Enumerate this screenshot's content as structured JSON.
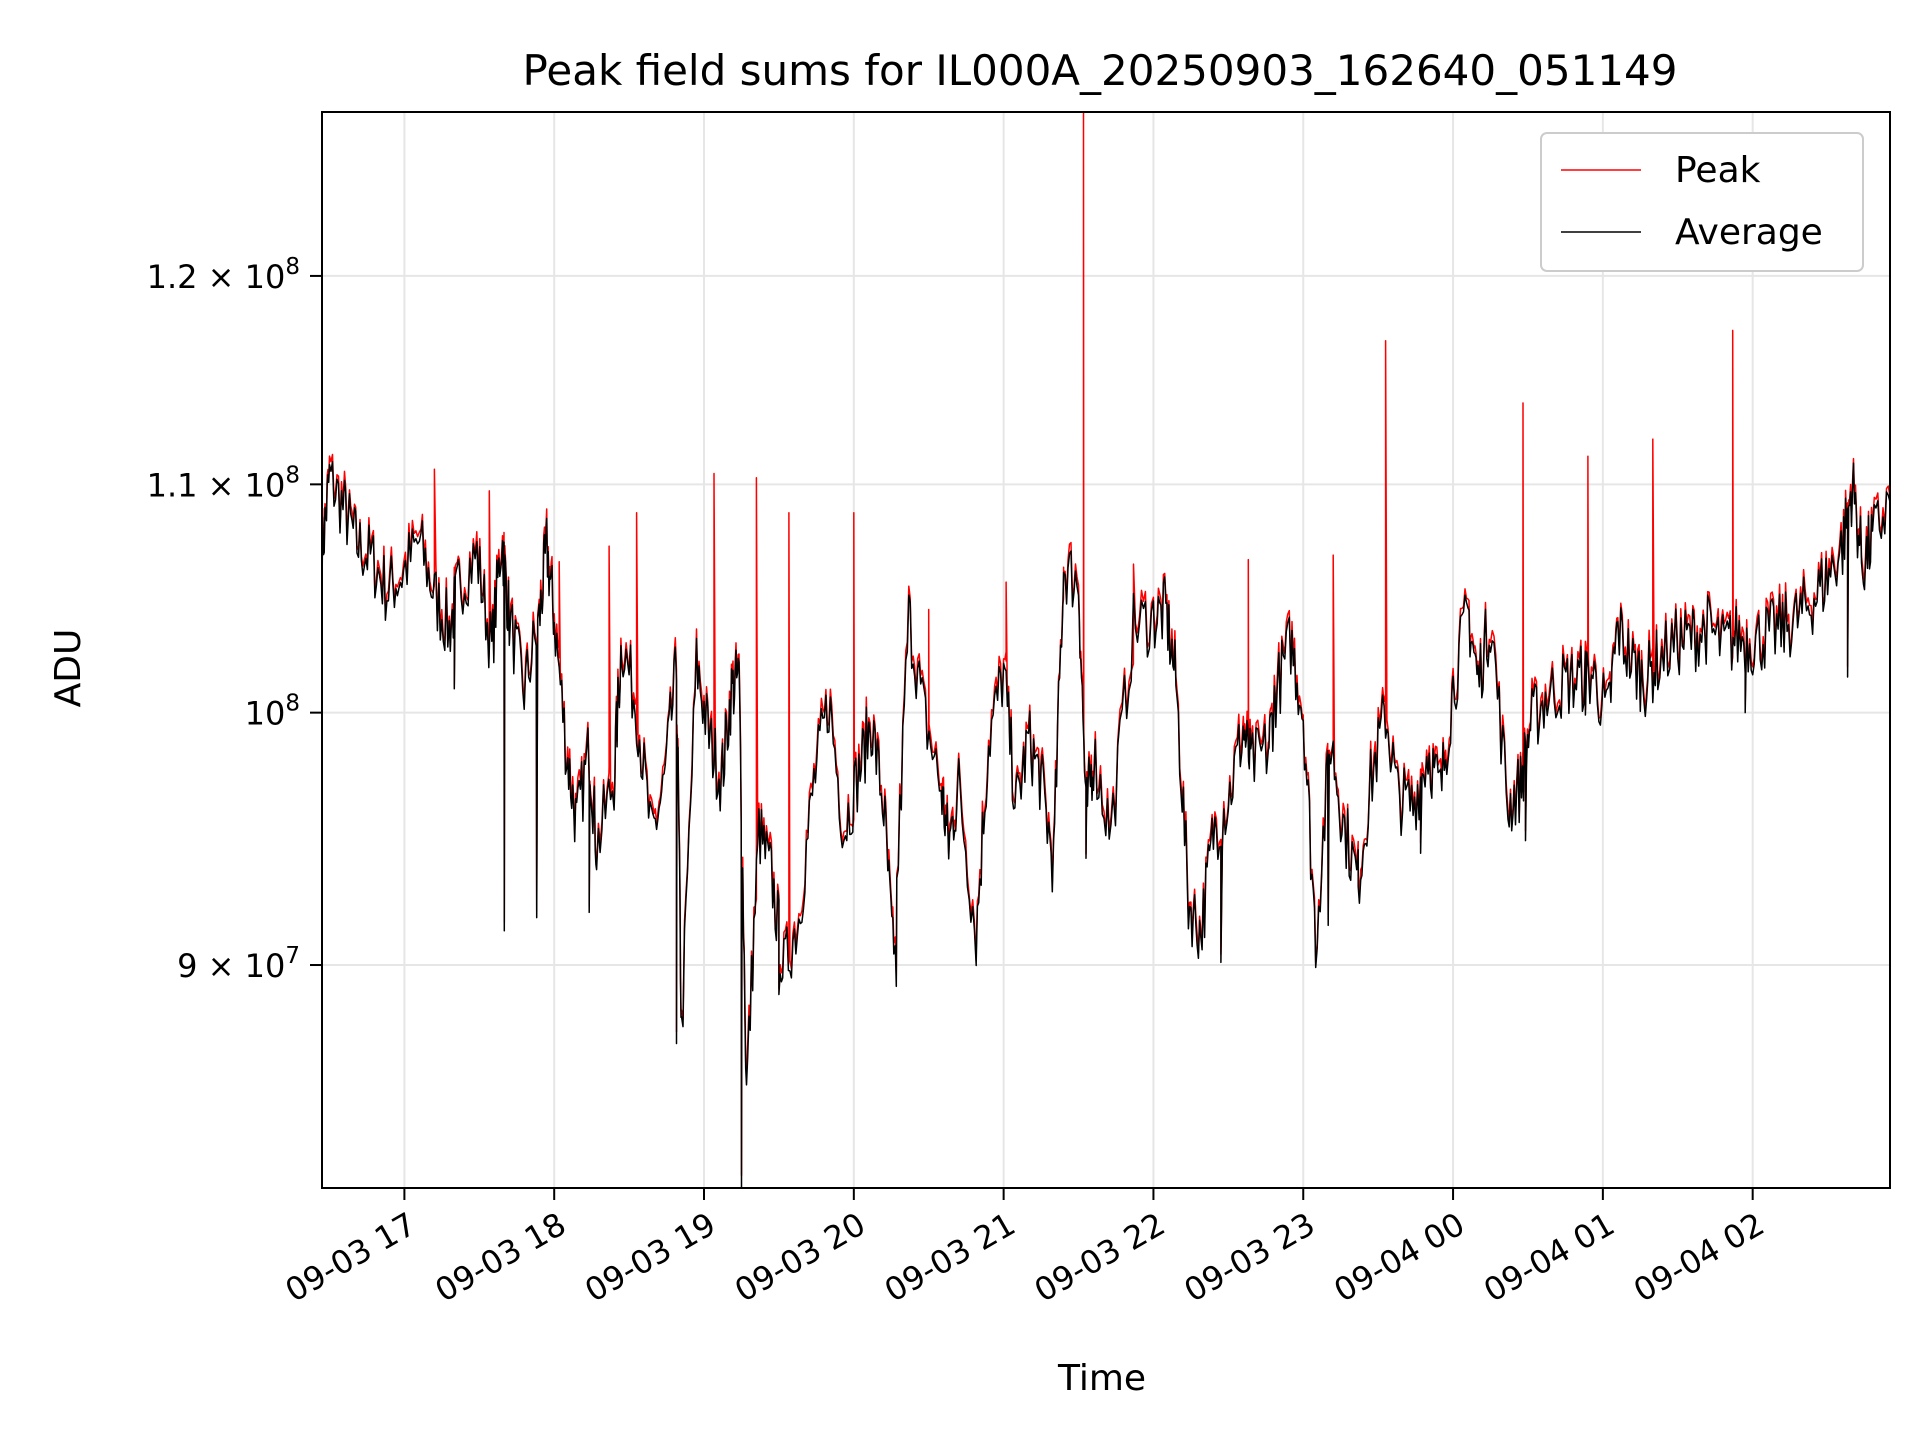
{
  "colors": {
    "peak": "#ff0000",
    "average": "#000000",
    "grid": "#e6e6e6"
  },
  "chart_data": {
    "type": "line",
    "title": "Peak field sums for IL000A_20250903_162640_051149",
    "xlabel": "Time",
    "ylabel": "ADU",
    "x_scale": "time",
    "y_scale": "log",
    "xlim": [
      "2025-09-03 16:27",
      "2025-09-04 02:55"
    ],
    "ylim": [
      82000000,
      128500000
    ],
    "grid": true,
    "legend": "top-right",
    "x_ticks": [
      "09-03 17",
      "09-03 18",
      "09-03 19",
      "09-03 20",
      "09-03 21",
      "09-03 22",
      "09-03 23",
      "09-04 00",
      "09-04 01",
      "09-04 02"
    ],
    "x_tick_times": [
      "2025-09-03 17:00",
      "2025-09-03 18:00",
      "2025-09-03 19:00",
      "2025-09-03 20:00",
      "2025-09-03 21:00",
      "2025-09-03 22:00",
      "2025-09-03 23:00",
      "2025-09-04 00:00",
      "2025-09-04 01:00",
      "2025-09-04 02:00"
    ],
    "y_ticks": [
      {
        "value": 90000000,
        "mant": "9",
        "exp": "7"
      },
      {
        "value": 100000000,
        "mant": "",
        "exp": "8"
      },
      {
        "value": 110000000,
        "mant": "1.1",
        "exp": "8"
      },
      {
        "value": 120000000,
        "mant": "1.2",
        "exp": "8"
      }
    ],
    "series": [
      {
        "name": "Average",
        "color": "#000000",
        "x": [
          "2025-09-03 16:27",
          "2025-09-03 16:30",
          "2025-09-03 16:36",
          "2025-09-03 16:41",
          "2025-09-03 16:47",
          "2025-09-03 16:53",
          "2025-09-03 16:59",
          "2025-09-03 17:06",
          "2025-09-03 17:12",
          "2025-09-03 17:18",
          "2025-09-03 17:22",
          "2025-09-03 17:29",
          "2025-09-03 17:35",
          "2025-09-03 17:39",
          "2025-09-03 17:42",
          "2025-09-03 17:48",
          "2025-09-03 17:54",
          "2025-09-03 17:57",
          "2025-09-03 18:00",
          "2025-09-03 18:05",
          "2025-09-03 18:09",
          "2025-09-03 18:14",
          "2025-09-03 18:17",
          "2025-09-03 18:24",
          "2025-09-03 18:27",
          "2025-09-03 18:33",
          "2025-09-03 18:39",
          "2025-09-03 18:44",
          "2025-09-03 18:49",
          "2025-09-03 18:51",
          "2025-09-03 18:57",
          "2025-09-03 19:02",
          "2025-09-03 19:07",
          "2025-09-03 19:11",
          "2025-09-03 19:14",
          "2025-09-03 19:17",
          "2025-09-03 19:22",
          "2025-09-03 19:27",
          "2025-09-03 19:32",
          "2025-09-03 19:38",
          "2025-09-03 19:44",
          "2025-09-03 19:50",
          "2025-09-03 19:56",
          "2025-09-03 20:02",
          "2025-09-03 20:07",
          "2025-09-03 20:12",
          "2025-09-03 20:16",
          "2025-09-03 20:22",
          "2025-09-03 20:28",
          "2025-09-03 20:35",
          "2025-09-03 20:38",
          "2025-09-03 20:42",
          "2025-09-03 20:49",
          "2025-09-03 20:54",
          "2025-09-03 21:00",
          "2025-09-03 21:05",
          "2025-09-03 21:10",
          "2025-09-03 21:15",
          "2025-09-03 21:20",
          "2025-09-03 21:24",
          "2025-09-03 21:30",
          "2025-09-03 21:33",
          "2025-09-03 21:36",
          "2025-09-03 21:43",
          "2025-09-03 21:52",
          "2025-09-03 22:00",
          "2025-09-03 22:05",
          "2025-09-03 22:09",
          "2025-09-03 22:14",
          "2025-09-03 22:19",
          "2025-09-03 22:24",
          "2025-09-03 22:30",
          "2025-09-03 22:36",
          "2025-09-03 22:39",
          "2025-09-03 22:46",
          "2025-09-03 22:49",
          "2025-09-03 22:55",
          "2025-09-03 23:00",
          "2025-09-03 23:05",
          "2025-09-03 23:11",
          "2025-09-03 23:16",
          "2025-09-03 23:22",
          "2025-09-03 23:27",
          "2025-09-03 23:33",
          "2025-09-03 23:38",
          "2025-09-03 23:44",
          "2025-09-03 23:50",
          "2025-09-03 23:55",
          "2025-09-04 00:00",
          "2025-09-04 00:06",
          "2025-09-04 00:10",
          "2025-09-04 00:15",
          "2025-09-04 00:22",
          "2025-09-04 00:27",
          "2025-09-04 00:31",
          "2025-09-04 00:37",
          "2025-09-04 00:44",
          "2025-09-04 00:50",
          "2025-09-04 00:56",
          "2025-09-04 01:02",
          "2025-09-04 01:06",
          "2025-09-04 01:12",
          "2025-09-04 01:17",
          "2025-09-04 01:22",
          "2025-09-04 01:30",
          "2025-09-04 01:36",
          "2025-09-04 01:42",
          "2025-09-04 01:48",
          "2025-09-04 01:54",
          "2025-09-04 02:00",
          "2025-09-04 02:06",
          "2025-09-04 02:12",
          "2025-09-04 02:18",
          "2025-09-04 02:24",
          "2025-09-04 02:30",
          "2025-09-04 02:36",
          "2025-09-04 02:40",
          "2025-09-04 02:44",
          "2025-09-04 02:48",
          "2025-09-04 02:55"
        ],
        "y": [
          106800000,
          110300000,
          108800000,
          107300000,
          106600000,
          105200000,
          105900000,
          107400000,
          105000000,
          103500000,
          105500000,
          106800000,
          102600000,
          107600000,
          104000000,
          100900000,
          103900000,
          107100000,
          104000000,
          98300000,
          95400000,
          98500000,
          94500000,
          97300000,
          103100000,
          100200000,
          94800000,
          97000000,
          101800000,
          87300000,
          102000000,
          99000000,
          97200000,
          100900000,
          101500000,
          85300000,
          95200000,
          93400000,
          89800000,
          91800000,
          97100000,
          100500000,
          95200000,
          97500000,
          99600000,
          96100000,
          89900000,
          104100000,
          100000000,
          96800000,
          94600000,
          97000000,
          91100000,
          98800000,
          101700000,
          96100000,
          98900000,
          97200000,
          93800000,
          106200000,
          105600000,
          95800000,
          98200000,
          95100000,
          103600000,
          104000000,
          104300000,
          101300000,
          92400000,
          91200000,
          95100000,
          96400000,
          99300000,
          97800000,
          98500000,
          100800000,
          103000000,
          100000000,
          90900000,
          98900000,
          95500000,
          93200000,
          97100000,
          100000000,
          96500000,
          96200000,
          98400000,
          96700000,
          101000000,
          104300000,
          101300000,
          104000000,
          96100000,
          97000000,
          99500000,
          100600000,
          101200000,
          101400000,
          101600000,
          99800000,
          103600000,
          102000000,
          101300000,
          102200000,
          103000000,
          103200000,
          103600000,
          102800000,
          103200000,
          103000000,
          103300000,
          103600000,
          104000000,
          104800000,
          105800000,
          107200000,
          110000000,
          106300000,
          107500000,
          109200000
        ],
        "dips": [
          [
            "2025-09-03 17:20",
            101000000
          ],
          [
            "2025-09-03 17:40",
            91300000
          ],
          [
            "2025-09-03 17:53",
            91800000
          ],
          [
            "2025-09-03 18:14",
            92000000
          ],
          [
            "2025-09-03 18:49",
            87100000
          ],
          [
            "2025-09-03 19:15",
            82000000
          ],
          [
            "2025-09-03 19:30",
            88900000
          ],
          [
            "2025-09-03 20:17",
            89200000
          ],
          [
            "2025-09-03 20:49",
            90100000
          ],
          [
            "2025-09-03 21:33",
            94100000
          ],
          [
            "2025-09-03 22:27",
            90100000
          ],
          [
            "2025-09-03 23:10",
            91500000
          ],
          [
            "2025-09-03 23:22",
            93000000
          ],
          [
            "2025-09-03 23:47",
            94300000
          ],
          [
            "2025-09-04 00:29",
            94800000
          ],
          [
            "2025-09-04 00:53",
            99900000
          ],
          [
            "2025-09-04 01:57",
            100000000
          ],
          [
            "2025-09-04 02:38",
            101500000
          ]
        ]
      },
      {
        "name": "Peak",
        "color": "#ff0000",
        "offset": 300000,
        "spikes": [
          [
            "2025-09-03 17:12",
            110700000
          ],
          [
            "2025-09-03 17:34",
            109700000
          ],
          [
            "2025-09-03 18:02",
            106500000
          ],
          [
            "2025-09-03 18:22",
            107200000
          ],
          [
            "2025-09-03 18:33",
            108700000
          ],
          [
            "2025-09-03 19:04",
            110500000
          ],
          [
            "2025-09-03 19:21",
            110300000
          ],
          [
            "2025-09-03 19:34",
            108700000
          ],
          [
            "2025-09-03 20:00",
            108700000
          ],
          [
            "2025-09-03 20:30",
            104400000
          ],
          [
            "2025-09-03 21:01",
            105600000
          ],
          [
            "2025-09-03 21:24",
            106100000
          ],
          [
            "2025-09-03 21:32",
            128500000
          ],
          [
            "2025-09-03 21:52",
            106400000
          ],
          [
            "2025-09-03 22:38",
            106600000
          ],
          [
            "2025-09-03 23:12",
            106800000
          ],
          [
            "2025-09-03 23:33",
            116800000
          ],
          [
            "2025-09-04 00:28",
            113800000
          ],
          [
            "2025-09-04 00:54",
            111300000
          ],
          [
            "2025-09-04 01:20",
            112100000
          ],
          [
            "2025-09-04 01:52",
            117300000
          ]
        ]
      }
    ]
  }
}
